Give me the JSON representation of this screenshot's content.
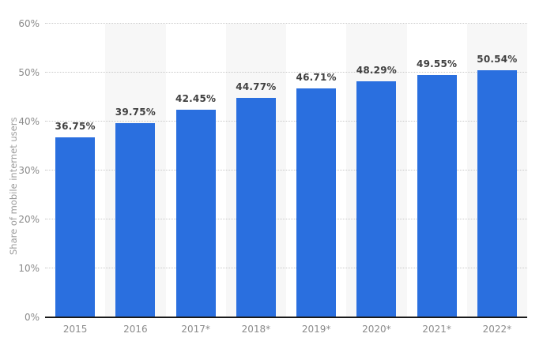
{
  "chart_data": {
    "type": "bar",
    "title": "",
    "xlabel": "",
    "ylabel": "Share of mobile internet users",
    "categories": [
      "2015",
      "2016",
      "2017*",
      "2018*",
      "2019*",
      "2020*",
      "2021*",
      "2022*"
    ],
    "values": [
      36.75,
      39.75,
      42.45,
      44.77,
      46.71,
      48.29,
      49.55,
      50.54
    ],
    "value_labels": [
      "36.75%",
      "39.75%",
      "42.45%",
      "44.77%",
      "46.71%",
      "48.29%",
      "49.55%",
      "50.54%"
    ],
    "ylim": [
      0,
      60
    ],
    "y_ticks": [
      {
        "value": 0,
        "label": "0%"
      },
      {
        "value": 10,
        "label": "10%"
      },
      {
        "value": 20,
        "label": "20%"
      },
      {
        "value": 30,
        "label": "30%"
      },
      {
        "value": 40,
        "label": "40%"
      },
      {
        "value": 50,
        "label": "50%"
      },
      {
        "value": 60,
        "label": "60%"
      }
    ],
    "grid": "horizontal-dotted",
    "legend": "none",
    "alternating_column_bands": true,
    "colors": {
      "bar": "#2a6fdf",
      "band": "#f7f7f7",
      "gridline": "#c8c8c8",
      "axis_line": "#1a1a1a",
      "tick_label": "#8b8b8b",
      "value_label": "#404040",
      "axis_title": "#9c9c9c",
      "background": "#ffffff"
    }
  }
}
